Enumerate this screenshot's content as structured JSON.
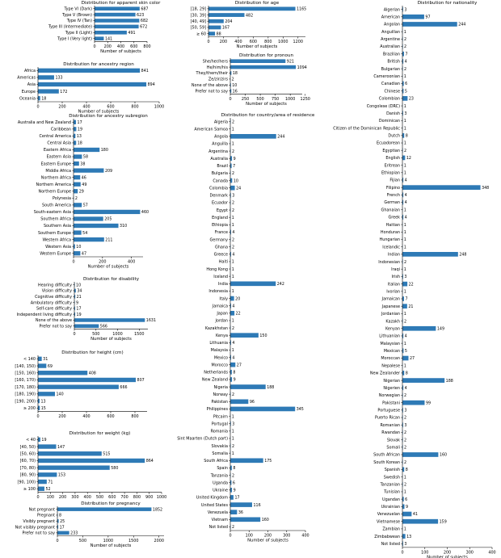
{
  "chart_data": [
    {
      "id": "skin",
      "type": "bar",
      "orientation": "horizontal",
      "title": "Distribution for apparent skin color",
      "xlabel": "Number of subjects",
      "xlim": [
        0,
        800
      ],
      "xticks": [
        0,
        200,
        400,
        600,
        800
      ],
      "categories": [
        "Type VI (Dark)",
        "Type V (Brown)",
        "Type IV (Tan)",
        "Type III (Intermediate)",
        "Type II (Light)",
        "Type I (Very light)"
      ],
      "values": [
        687,
        623,
        682,
        672,
        491,
        141
      ]
    },
    {
      "id": "age",
      "type": "bar",
      "orientation": "horizontal",
      "title": "Distribution for age",
      "xlabel": "Number of subjects",
      "xlim": [
        0,
        1300
      ],
      "xticks": [
        0,
        200,
        400,
        600,
        800,
        1000,
        1200
      ],
      "categories": [
        "[18, 29]",
        "[30, 39]",
        "[40, 49]",
        "[50, 59]",
        "≥ 60"
      ],
      "values": [
        1165,
        482,
        204,
        167,
        88
      ]
    },
    {
      "id": "ancestry",
      "type": "bar",
      "orientation": "horizontal",
      "title": "Distribution for ancestry region",
      "xlabel": "Number of subjects",
      "xlim": [
        0,
        1000
      ],
      "xticks": [
        0,
        200,
        400,
        600,
        800,
        1000
      ],
      "categories": [
        "Africa",
        "Americas",
        "Asia",
        "Europe",
        "Oceania"
      ],
      "values": [
        841,
        133,
        894,
        172,
        18
      ]
    },
    {
      "id": "pronoun",
      "type": "bar",
      "orientation": "horizontal",
      "title": "Distribution for pronoun",
      "xlabel": "Number of subjects",
      "xlim": [
        0,
        1200
      ],
      "xticks": [
        0,
        250,
        500,
        750,
        1000,
        1250
      ],
      "categories": [
        "She/her/hers",
        "He/him/his",
        "They/them/their",
        "Ze/zir/zirs",
        "None of the above",
        "Prefer not to say"
      ],
      "values": [
        921,
        1094,
        18,
        2,
        10,
        16
      ]
    },
    {
      "id": "subregion",
      "type": "bar",
      "orientation": "horizontal",
      "title": "Distribution for ancestry subregion",
      "xlabel": "Number of subjects",
      "xlim": [
        0,
        480
      ],
      "xticks": [
        0,
        200,
        400
      ],
      "categories": [
        "Australia and New Zealand",
        "Caribbean",
        "Central America",
        "Central Asia",
        "Eastern Africa",
        "Eastern Asia",
        "Eastern Europe",
        "Middle Africa",
        "Northern Africa",
        "Northern America",
        "Northern Europe",
        "Polynesia",
        "South America",
        "South-eastern Asia",
        "Southern Africa",
        "Southern Asia",
        "Southern Europe",
        "Western Africa",
        "Western Asia",
        "Western Europe"
      ],
      "values": [
        17,
        19,
        13,
        18,
        180,
        58,
        38,
        209,
        46,
        49,
        29,
        2,
        57,
        460,
        205,
        310,
        54,
        211,
        10,
        47
      ]
    },
    {
      "id": "disability",
      "type": "bar",
      "orientation": "horizontal",
      "title": "Distribution for disability",
      "xlabel": "Number of subjects",
      "xlim": [
        0,
        1700
      ],
      "xticks": [
        0,
        500,
        1000,
        1500
      ],
      "categories": [
        "Hearing difficulty",
        "Vision difficulty",
        "Cognitive difficulty",
        "Ambulatory difficulty",
        "Self-care difficulty",
        "Independent living difficulty",
        "None of the above",
        "Prefer not to say"
      ],
      "values": [
        10,
        34,
        21,
        9,
        17,
        19,
        1631,
        566
      ]
    },
    {
      "id": "height",
      "type": "bar",
      "orientation": "horizontal",
      "title": "Distribution for height (cm)",
      "xlabel": "",
      "xlim": [
        0,
        900
      ],
      "xticks": [
        0,
        200,
        400,
        600,
        800
      ],
      "categories": [
        "< 140",
        "[140, 150)",
        "[150, 160)",
        "[160, 170)",
        "[170, 180)",
        "[180, 190)",
        "[190, 200)",
        "≥ 200"
      ],
      "values": [
        31,
        69,
        408,
        807,
        666,
        140,
        13,
        15
      ]
    },
    {
      "id": "weight",
      "type": "bar",
      "orientation": "horizontal",
      "title": "Distribution for weight (kg)",
      "xlabel": "",
      "xlim": [
        0,
        1000
      ],
      "xticks": [
        0,
        100,
        200,
        300,
        400,
        500,
        600,
        700,
        800,
        900,
        1000
      ],
      "categories": [
        "< 40",
        "[40, 50)",
        "[50, 60)",
        "[60, 70)",
        "[70, 80)",
        "[80, 90)",
        "[90, 100)",
        "≥ 100"
      ],
      "values": [
        19,
        147,
        515,
        864,
        580,
        153,
        71,
        52
      ]
    },
    {
      "id": "pregnancy",
      "type": "bar",
      "orientation": "horizontal",
      "title": "Distribution for pregnancy",
      "xlabel": "Number of subjects",
      "xlim": [
        0,
        2100
      ],
      "xticks": [
        0,
        500,
        1000,
        1500,
        2000
      ],
      "categories": [
        "Not pregnant",
        "Pregnant",
        "Visibly pregnant",
        "Not visibly pregnant",
        "Prefer not to say"
      ],
      "values": [
        1852,
        8,
        25,
        17,
        233
      ]
    },
    {
      "id": "residence",
      "type": "bar",
      "orientation": "horizontal",
      "title": "Distribution for country/area of residence",
      "xlabel": "Number of subjects",
      "xlim": [
        0,
        400
      ],
      "xticks": [
        0,
        100,
        200,
        300,
        400
      ],
      "categories": [
        "Algeria",
        "American Samoa",
        "Angola",
        "Anguilla",
        "Argentina",
        "Australia",
        "Brazil",
        "Bulgaria",
        "Canada",
        "Colombia",
        "Denmark",
        "Ecuador",
        "Egypt",
        "England",
        "Ethiopia",
        "France",
        "Germany",
        "Ghana",
        "Greece",
        "Haiti",
        "Hong Kong",
        "Iceland",
        "India",
        "Indonesia",
        "Italy",
        "Jamaica",
        "Japan",
        "Jordan",
        "Kazakhstan",
        "Kenya",
        "Lithuania",
        "Malaysia",
        "Mexico",
        "Morocco",
        "Netherlands",
        "New Zealand",
        "Nigeria",
        "Norway",
        "Pakistan",
        "Philippines",
        "Pitcairn",
        "Portugal",
        "Romania",
        "Sint Maarten (Dutch part)",
        "Slovakia",
        "Somalia",
        "South Africa",
        "Spain",
        "Tanzania",
        "Uganda",
        "Ukraine",
        "United Kingdom",
        "United States",
        "Venezuela",
        "Vietnam",
        "Not listed"
      ],
      "values": [
        2,
        1,
        244,
        1,
        2,
        9,
        7,
        2,
        10,
        24,
        3,
        2,
        2,
        1,
        1,
        4,
        2,
        2,
        4,
        1,
        1,
        1,
        242,
        1,
        20,
        4,
        22,
        1,
        2,
        150,
        4,
        1,
        4,
        27,
        8,
        9,
        188,
        2,
        96,
        345,
        1,
        3,
        1,
        1,
        2,
        1,
        175,
        8,
        2,
        6,
        9,
        17,
        116,
        36,
        160,
        2
      ]
    },
    {
      "id": "nationality",
      "type": "bar",
      "orientation": "horizontal",
      "title": "Distribution for nationality",
      "xlabel": "Number of subjects",
      "xlim": [
        0,
        400
      ],
      "xticks": [
        0,
        100,
        200,
        300,
        400
      ],
      "categories": [
        "Algerian",
        "American",
        "Angolan",
        "Anguillan",
        "Argentine",
        "Australian",
        "Brazilian",
        "British",
        "Bulgarian",
        "Cameroonian",
        "Canadian",
        "Chinese",
        "Colombian",
        "Congolese (DRC)",
        "Danish",
        "Dominican",
        "Citizen of the Dominican Republic",
        "Dutch",
        "Ecuadorean",
        "Egyptian",
        "English",
        "Eritrean",
        "Ethiopian",
        "Fijian",
        "Filipino",
        "French",
        "German",
        "Ghanaian",
        "Greek",
        "Haitian",
        "Honduran",
        "Hungarian",
        "Icelandic",
        "Indian",
        "Indonesian",
        "Iraqi",
        "Irish",
        "Italian",
        "Ivorian",
        "Jamaican",
        "Japanese",
        "Jordanian",
        "Kazakh",
        "Kenyan",
        "Lithuanian",
        "Malaysian",
        "Mexican",
        "Moroccan",
        "Nepalese",
        "New Zealander",
        "Nigerian",
        "Nigerien",
        "Norwegian",
        "Pakistani",
        "Portuguese",
        "Puerto Rican",
        "Romanian",
        "Rwandan",
        "Slovak",
        "Somali",
        "South African",
        "South Korean",
        "Spanish",
        "Swedish",
        "Tanzanian",
        "Tunisian",
        "Ugandan",
        "Ukrainian",
        "Venezuelan",
        "Vietnamese",
        "Zambian",
        "Zimbabwean",
        "Not listed"
      ],
      "values": [
        3,
        97,
        244,
        1,
        2,
        2,
        7,
        4,
        2,
        1,
        6,
        5,
        23,
        1,
        3,
        1,
        1,
        8,
        1,
        2,
        12,
        1,
        1,
        4,
        348,
        4,
        4,
        1,
        4,
        1,
        1,
        1,
        1,
        248,
        2,
        1,
        3,
        22,
        1,
        7,
        21,
        1,
        2,
        149,
        4,
        1,
        5,
        27,
        1,
        8,
        188,
        4,
        2,
        99,
        3,
        2,
        3,
        2,
        2,
        2,
        160,
        2,
        8,
        1,
        2,
        1,
        6,
        9,
        41,
        159,
        1,
        13,
        3
      ]
    }
  ]
}
